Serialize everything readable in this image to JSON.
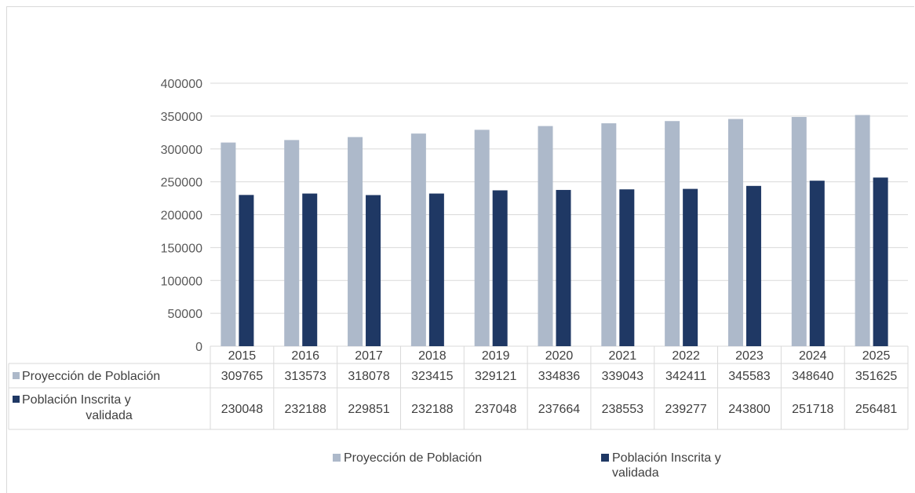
{
  "colors": {
    "proyeccion": "#adb9ca",
    "inscrita": "#1f3864",
    "grid": "#d9d9d9",
    "axis_text": "#595959"
  },
  "chart_data": {
    "type": "bar",
    "categories": [
      "2015",
      "2016",
      "2017",
      "2018",
      "2019",
      "2020",
      "2021",
      "2022",
      "2023",
      "2024",
      "2025"
    ],
    "series": [
      {
        "name": "Proyección de Población",
        "values": [
          309765,
          313573,
          318078,
          323415,
          329121,
          334836,
          339043,
          342411,
          345583,
          348640,
          351625
        ]
      },
      {
        "name": "Población Inscrita y validada",
        "values": [
          230048,
          232188,
          229851,
          232188,
          237048,
          237664,
          238553,
          239277,
          243800,
          251718,
          256481
        ]
      }
    ],
    "ylim": [
      0,
      400000
    ],
    "yticks": [
      "0",
      "50000",
      "100000",
      "150000",
      "200000",
      "250000",
      "300000",
      "350000",
      "400000"
    ],
    "grid": true,
    "data_table": true,
    "legend_position": "bottom"
  },
  "legend": {
    "items": [
      {
        "label": "Proyección de Población"
      },
      {
        "label_line1": "Población Inscrita y",
        "label_line2": "validada"
      }
    ]
  },
  "table": {
    "row_labels": [
      {
        "line1": "Proyección de Población"
      },
      {
        "line1": "Población Inscrita y",
        "line2": "validada"
      }
    ]
  }
}
